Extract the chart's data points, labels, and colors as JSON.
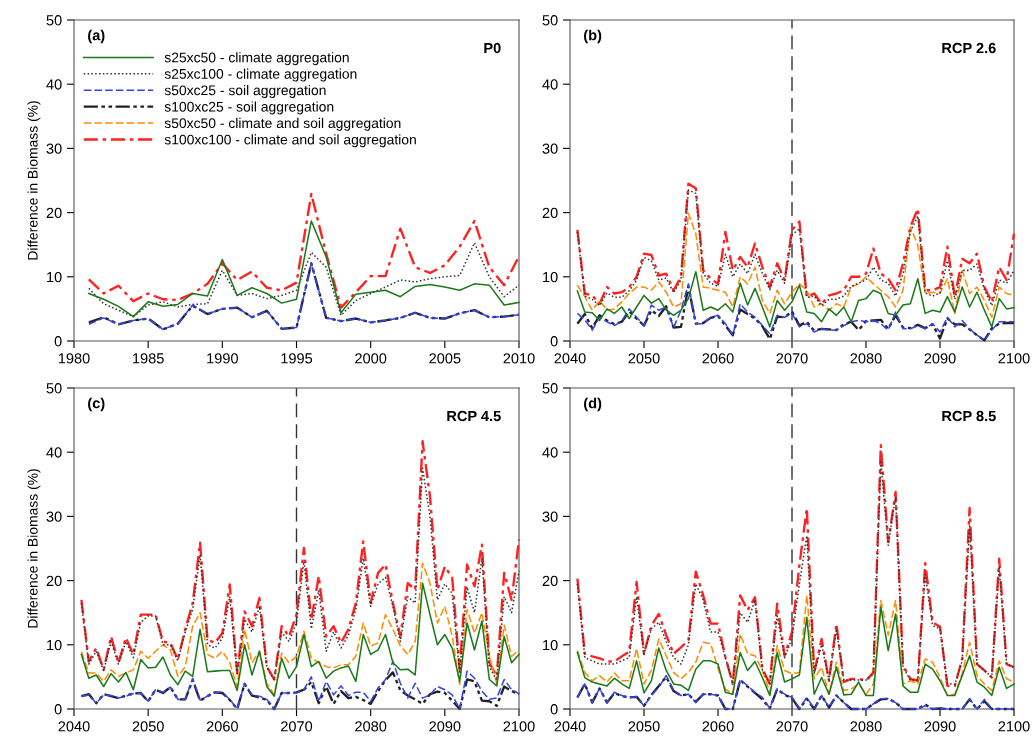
{
  "chart_data": [
    {
      "type": "line",
      "ylabel": "Difference in Biomass (%)",
      "annotations": [
        "(a)",
        "P0"
      ],
      "legend": "top left",
      "xlim": [
        1980,
        2010
      ],
      "ylim": [
        0,
        50
      ],
      "xticks": [
        1980,
        1985,
        1990,
        1995,
        2000,
        2005,
        2010
      ],
      "yticks": [
        0,
        10,
        20,
        30,
        40,
        50
      ],
      "x": [
        1981,
        1982,
        1983,
        1984,
        1985,
        1986,
        1987,
        1988,
        1989,
        1990,
        1991,
        1992,
        1993,
        1994,
        1995,
        1996,
        1997,
        1998,
        1999,
        2000,
        2001,
        2002,
        2003,
        2004,
        2005,
        2006,
        2007,
        2008,
        2009,
        2010
      ],
      "series": [
        {
          "name": "s25xc50 - climate aggregation",
          "color": "#1a7a1a",
          "line_style": "solid",
          "values": [
            7.4,
            6.5,
            5.4,
            3.8,
            6.1,
            5.4,
            5.7,
            7.4,
            7.0,
            12.7,
            7.1,
            8.3,
            7.4,
            5.9,
            6.5,
            18.7,
            13.1,
            4.4,
            7.3,
            7.6,
            7.9,
            6.9,
            8.5,
            8.8,
            8.4,
            7.9,
            8.9,
            8.7,
            5.6,
            6.0
          ]
        },
        {
          "name": "s25xc100 - climate aggregation",
          "color": "#333333",
          "line_style": "dotted",
          "values": [
            8.2,
            5.8,
            4.8,
            3.8,
            5.6,
            6.1,
            5.3,
            5.7,
            5.8,
            11.0,
            7.1,
            7.4,
            6.6,
            7.1,
            7.9,
            13.8,
            11.5,
            4.0,
            6.3,
            7.4,
            8.4,
            9.5,
            9.2,
            9.7,
            10.0,
            10.2,
            15.3,
            10.0,
            6.9,
            8.7
          ]
        },
        {
          "name": "s50xc25 - soil aggregation",
          "color": "#3344ee",
          "line_style": "dashed",
          "values": [
            2.6,
            3.6,
            2.6,
            3.2,
            3.5,
            1.8,
            2.7,
            5.6,
            4.2,
            5.0,
            5.2,
            3.7,
            4.7,
            1.9,
            2.1,
            12.1,
            3.6,
            3.1,
            3.5,
            2.9,
            3.2,
            3.6,
            4.4,
            3.6,
            3.5,
            4.3,
            4.8,
            3.7,
            3.8,
            4.1
          ]
        },
        {
          "name": "s100xc25 - soil aggregation",
          "color": "#222222",
          "line_style": "dashdotdot",
          "values": [
            2.9,
            3.7,
            2.6,
            3.2,
            3.5,
            1.8,
            2.7,
            5.5,
            4.2,
            5.0,
            5.2,
            3.7,
            4.7,
            1.9,
            2.1,
            12.1,
            3.6,
            3.1,
            3.5,
            2.9,
            3.2,
            3.6,
            4.4,
            3.6,
            3.5,
            4.3,
            4.8,
            3.7,
            3.8,
            4.1
          ]
        },
        {
          "name": "s50xc50 - climate and soil aggregation",
          "color": "#ff8c00",
          "line_style": "dashed",
          "values": [
            null,
            null,
            null,
            null,
            null,
            null,
            null,
            null,
            null,
            null,
            null,
            null,
            null,
            null,
            null,
            null,
            null,
            null,
            null,
            null,
            null,
            null,
            null,
            null,
            null,
            null,
            null,
            null,
            null,
            null
          ]
        },
        {
          "name": "s100xc100 - climate and soil aggregation",
          "color": "#ff2020",
          "line_style": "dashdot",
          "values": [
            9.6,
            7.4,
            8.6,
            6.2,
            7.4,
            6.5,
            6.4,
            7.4,
            8.9,
            12.1,
            9.5,
            10.8,
            8.3,
            7.9,
            9.1,
            22.9,
            13.6,
            5.2,
            7.6,
            10.1,
            10.1,
            17.5,
            11.5,
            10.6,
            11.8,
            14.7,
            18.7,
            11.5,
            8.7,
            13.2
          ]
        }
      ]
    },
    {
      "type": "line",
      "annotations": [
        "(b)",
        "RCP 2.6"
      ],
      "xlim": [
        2040,
        2100
      ],
      "ylim": [
        0,
        50
      ],
      "xticks": [
        2040,
        2050,
        2060,
        2070,
        2080,
        2090,
        2100
      ],
      "yticks": [
        0,
        10,
        20,
        30,
        40,
        50
      ],
      "ref_lines": [
        {
          "axis": "x",
          "value": 2070,
          "color": "#333333",
          "line_style": "dashed"
        }
      ],
      "x": [
        2041,
        2042,
        2043,
        2044,
        2045,
        2046,
        2047,
        2048,
        2049,
        2050,
        2051,
        2052,
        2053,
        2054,
        2055,
        2056,
        2057,
        2058,
        2059,
        2060,
        2061,
        2062,
        2063,
        2064,
        2065,
        2066,
        2067,
        2068,
        2069,
        2070,
        2071,
        2072,
        2073,
        2074,
        2075,
        2076,
        2077,
        2078,
        2079,
        2080,
        2081,
        2082,
        2083,
        2084,
        2085,
        2086,
        2087,
        2088,
        2089,
        2090,
        2091,
        2092,
        2093,
        2094,
        2095,
        2096,
        2097,
        2098,
        2099,
        2100
      ],
      "series": [
        {
          "color": "#1a7a1a",
          "line_style": "solid",
          "values": [
            7.8,
            4.5,
            4.4,
            3.2,
            5.0,
            4.3,
            5.3,
            3.5,
            5.3,
            7.1,
            5.9,
            6.6,
            4.8,
            4.0,
            4.8,
            6.6,
            10.8,
            4.8,
            5.3,
            4.8,
            5.8,
            4.5,
            9.0,
            5.6,
            8.2,
            5.3,
            2.2,
            6.3,
            4.8,
            6.1,
            8.7,
            4.5,
            4.3,
            3.0,
            5.0,
            4.0,
            5.3,
            3.0,
            6.3,
            6.6,
            7.9,
            7.4,
            4.3,
            4.0,
            5.6,
            5.8,
            9.7,
            4.3,
            4.8,
            4.5,
            6.9,
            4.5,
            8.4,
            5.3,
            7.6,
            4.8,
            2.2,
            6.6,
            5.0,
            5.2
          ]
        },
        {
          "color": "#333333",
          "line_style": "dotted",
          "values": [
            17.0,
            7.0,
            6.5,
            5.5,
            7.5,
            6.8,
            6.8,
            7.8,
            9.5,
            13.0,
            12.5,
            9.5,
            9.8,
            7.5,
            9.5,
            23.5,
            23.0,
            10.5,
            9.0,
            8.5,
            13.5,
            10.0,
            12.0,
            10.5,
            13.5,
            10.5,
            8.0,
            11.0,
            9.0,
            16.5,
            17.5,
            6.8,
            7.0,
            5.5,
            6.5,
            6.5,
            7.0,
            8.5,
            9.0,
            9.5,
            11.5,
            9.5,
            9.0,
            7.0,
            10.5,
            17.0,
            19.5,
            7.5,
            7.0,
            7.5,
            12.5,
            6.5,
            11.0,
            11.0,
            12.0,
            8.0,
            5.5,
            9.5,
            9.0,
            11.0
          ]
        },
        {
          "color": "#3344ee",
          "line_style": "dashed",
          "values": [
            4.3,
            3.3,
            1.7,
            3.7,
            3.0,
            2.4,
            3.1,
            5.0,
            3.7,
            2.4,
            5.6,
            4.8,
            5.3,
            2.1,
            4.8,
            8.9,
            2.7,
            2.7,
            3.7,
            4.0,
            2.7,
            0.9,
            5.8,
            4.5,
            3.7,
            2.4,
            1.1,
            4.0,
            3.7,
            4.3,
            2.2,
            2.7,
            1.4,
            1.9,
            1.7,
            1.7,
            2.4,
            3.0,
            3.2,
            3.0,
            3.2,
            2.7,
            1.7,
            4.5,
            1.9,
            1.9,
            2.4,
            1.9,
            2.7,
            1.4,
            3.7,
            2.2,
            3.2,
            1.9,
            0.9,
            0.1,
            1.7,
            3.0,
            3.0,
            3.0
          ]
        },
        {
          "color": "#222222",
          "line_style": "dashdotdot",
          "values": [
            2.7,
            4.2,
            2.0,
            4.0,
            3.2,
            2.6,
            3.0,
            4.6,
            3.5,
            2.4,
            4.8,
            3.9,
            5.4,
            2.1,
            2.2,
            8.5,
            2.7,
            2.8,
            3.6,
            3.9,
            2.4,
            0.9,
            4.9,
            4.2,
            3.5,
            2.3,
            0.3,
            3.8,
            3.7,
            4.6,
            2.4,
            3.0,
            1.6,
            1.9,
            1.8,
            1.7,
            2.6,
            3.0,
            1.7,
            3.1,
            3.2,
            3.3,
            1.9,
            4.0,
            2.1,
            2.0,
            2.5,
            2.0,
            2.6,
            0.4,
            3.5,
            2.6,
            2.6,
            1.8,
            0.9,
            0.1,
            2.0,
            2.7,
            2.8,
            2.8
          ]
        },
        {
          "color": "#ff8c00",
          "line_style": "dashed",
          "values": [
            8.7,
            6.9,
            4.8,
            6.3,
            4.8,
            5.0,
            6.1,
            7.4,
            8.4,
            8.4,
            7.9,
            9.2,
            7.6,
            5.3,
            5.8,
            19.9,
            16.7,
            8.4,
            8.2,
            7.9,
            7.6,
            5.3,
            10.0,
            8.9,
            11.5,
            6.3,
            4.3,
            7.9,
            5.8,
            7.6,
            8.9,
            7.9,
            5.3,
            5.8,
            4.8,
            5.8,
            5.3,
            8.4,
            8.9,
            10.0,
            8.9,
            7.9,
            6.9,
            5.3,
            7.9,
            17.8,
            14.9,
            7.4,
            7.6,
            7.4,
            9.7,
            4.3,
            11.0,
            7.4,
            8.4,
            6.3,
            3.7,
            8.4,
            7.4,
            7.1
          ]
        },
        {
          "color": "#ff2020",
          "line_style": "dashdot",
          "values": [
            17.3,
            7.4,
            7.1,
            5.8,
            8.4,
            7.4,
            7.6,
            8.4,
            10.0,
            13.6,
            13.4,
            10.2,
            10.5,
            7.9,
            10.0,
            24.5,
            23.8,
            11.0,
            9.7,
            8.9,
            17.0,
            11.0,
            13.1,
            11.5,
            15.2,
            11.5,
            8.4,
            12.1,
            9.5,
            17.3,
            18.6,
            6.9,
            7.4,
            5.8,
            7.1,
            7.4,
            7.9,
            10.0,
            10.0,
            10.5,
            14.4,
            10.5,
            9.7,
            7.9,
            12.1,
            17.8,
            20.6,
            7.9,
            7.9,
            8.4,
            14.7,
            6.9,
            12.8,
            12.1,
            13.6,
            8.4,
            6.1,
            11.5,
            9.5,
            16.7
          ]
        }
      ]
    },
    {
      "type": "line",
      "ylabel": "Difference in Biomass (%)",
      "annotations": [
        "(c)",
        "RCP 4.5"
      ],
      "xlim": [
        2040,
        2100
      ],
      "ylim": [
        0,
        50
      ],
      "xticks": [
        2040,
        2050,
        2060,
        2070,
        2080,
        2090,
        2100
      ],
      "yticks": [
        0,
        10,
        20,
        30,
        40,
        50
      ],
      "ref_lines": [
        {
          "axis": "x",
          "value": 2070,
          "color": "#333333",
          "line_style": "dashed"
        }
      ],
      "x": [
        2041,
        2042,
        2043,
        2044,
        2045,
        2046,
        2047,
        2048,
        2049,
        2050,
        2051,
        2052,
        2053,
        2054,
        2055,
        2056,
        2057,
        2058,
        2059,
        2060,
        2061,
        2062,
        2063,
        2064,
        2065,
        2066,
        2067,
        2068,
        2069,
        2070,
        2071,
        2072,
        2073,
        2074,
        2075,
        2076,
        2077,
        2078,
        2079,
        2080,
        2081,
        2082,
        2083,
        2084,
        2085,
        2086,
        2087,
        2088,
        2089,
        2090,
        2091,
        2092,
        2093,
        2094,
        2095,
        2096,
        2097,
        2098,
        2099,
        2100
      ],
      "series": [
        {
          "color": "#1a7a1a",
          "line_style": "solid",
          "values": [
            8.5,
            4.8,
            5.3,
            3.5,
            5.5,
            4.2,
            5.7,
            3.0,
            7.7,
            6.4,
            6.5,
            8.1,
            5.3,
            3.8,
            5.9,
            5.1,
            12.4,
            5.8,
            5.9,
            6.0,
            6.0,
            2.9,
            10.0,
            5.3,
            9.0,
            3.5,
            2.0,
            7.9,
            4.8,
            6.6,
            11.6,
            6.6,
            7.4,
            4.8,
            5.9,
            6.4,
            6.7,
            4.3,
            11.6,
            8.5,
            9.2,
            11.6,
            7.2,
            6.1,
            6.2,
            5.3,
            19.6,
            14.7,
            10.0,
            11.6,
            9.5,
            4.3,
            13.4,
            9.2,
            13.7,
            4.6,
            3.6,
            11.3,
            7.2,
            8.5
          ]
        },
        {
          "color": "#333333",
          "line_style": "dotted",
          "values": [
            16.5,
            7.0,
            9.0,
            6.0,
            10.5,
            7.0,
            10.5,
            8.0,
            13.5,
            14.5,
            14.5,
            10.0,
            10.0,
            7.5,
            12.0,
            15.5,
            24.0,
            10.0,
            9.5,
            11.0,
            17.5,
            5.5,
            14.0,
            12.0,
            16.0,
            6.5,
            4.5,
            12.0,
            10.5,
            13.5,
            23.0,
            12.5,
            18.5,
            9.0,
            12.0,
            9.5,
            11.5,
            15.5,
            23.5,
            16.0,
            19.5,
            20.5,
            16.0,
            10.5,
            17.5,
            16.5,
            37.5,
            30.0,
            17.0,
            19.5,
            18.0,
            5.5,
            19.0,
            15.0,
            23.5,
            6.5,
            4.5,
            17.5,
            15.0,
            21.5
          ]
        },
        {
          "color": "#3344ee",
          "line_style": "dashed",
          "values": [
            2.0,
            2.2,
            0.9,
            2.2,
            2.1,
            1.7,
            2.0,
            2.4,
            2.5,
            1.2,
            3.0,
            2.6,
            3.4,
            1.5,
            1.5,
            4.8,
            1.4,
            2.0,
            2.6,
            2.6,
            1.5,
            0.0,
            4.0,
            2.2,
            2.0,
            1.5,
            0.0,
            2.5,
            2.5,
            2.5,
            3.0,
            5.0,
            1.2,
            4.3,
            2.2,
            3.6,
            2.1,
            2.6,
            2.6,
            1.2,
            3.3,
            4.6,
            7.4,
            4.0,
            1.7,
            4.0,
            1.7,
            2.2,
            3.5,
            3.0,
            2.2,
            0.0,
            5.9,
            4.8,
            2.8,
            1.5,
            1.7,
            4.6,
            3.0,
            2.4
          ]
        },
        {
          "color": "#222222",
          "line_style": "dashdotdot",
          "values": [
            2.0,
            2.3,
            0.9,
            2.3,
            2.0,
            1.7,
            2.1,
            2.4,
            2.5,
            1.2,
            3.0,
            2.5,
            3.4,
            1.5,
            1.5,
            4.5,
            1.3,
            2.0,
            2.6,
            2.5,
            1.4,
            0.0,
            3.9,
            2.1,
            1.8,
            1.4,
            0.0,
            2.5,
            2.5,
            2.6,
            3.0,
            4.2,
            0.9,
            3.5,
            0.8,
            2.8,
            1.7,
            1.9,
            1.4,
            0.8,
            2.8,
            4.5,
            5.7,
            2.9,
            2.1,
            1.5,
            0.8,
            2.3,
            2.7,
            2.5,
            1.3,
            0.0,
            4.6,
            4.3,
            1.3,
            1.2,
            0.5,
            3.5,
            2.8,
            2.3
          ]
        },
        {
          "color": "#ff8c00",
          "line_style": "dashed",
          "values": [
            8.9,
            5.6,
            5.6,
            4.3,
            6.1,
            5.1,
            5.6,
            6.1,
            9.0,
            7.9,
            9.0,
            10.0,
            9.2,
            5.1,
            6.6,
            12.9,
            15.0,
            8.5,
            7.9,
            9.0,
            7.2,
            3.5,
            12.4,
            7.2,
            9.0,
            4.0,
            2.2,
            8.7,
            7.2,
            8.2,
            12.1,
            7.9,
            7.2,
            6.6,
            6.4,
            6.9,
            6.9,
            8.2,
            13.4,
            9.8,
            10.3,
            14.7,
            12.4,
            9.8,
            8.5,
            10.5,
            22.7,
            19.6,
            13.4,
            16.0,
            11.3,
            3.8,
            15.5,
            11.8,
            15.0,
            8.2,
            4.0,
            13.1,
            8.2,
            9.2
          ]
        },
        {
          "color": "#ff2020",
          "line_style": "dashdot",
          "values": [
            17.0,
            7.4,
            9.5,
            6.1,
            11.3,
            7.2,
            11.1,
            8.5,
            14.7,
            14.7,
            14.7,
            10.5,
            10.3,
            7.7,
            12.4,
            16.5,
            25.9,
            10.8,
            10.3,
            11.8,
            19.4,
            5.6,
            15.2,
            12.9,
            17.3,
            6.6,
            4.6,
            12.9,
            11.3,
            14.7,
            25.1,
            13.9,
            20.7,
            11.3,
            12.9,
            10.3,
            12.4,
            16.5,
            26.1,
            16.5,
            21.2,
            22.5,
            16.5,
            11.3,
            19.6,
            18.6,
            41.7,
            33.1,
            18.6,
            22.2,
            20.4,
            6.1,
            22.5,
            19.1,
            25.6,
            7.2,
            5.1,
            21.2,
            17.0,
            26.4
          ]
        }
      ]
    },
    {
      "type": "line",
      "annotations": [
        "(d)",
        "RCP 8.5"
      ],
      "xlim": [
        2040,
        2100
      ],
      "ylim": [
        0,
        50
      ],
      "xticks": [
        2040,
        2050,
        2060,
        2070,
        2080,
        2090,
        2100
      ],
      "yticks": [
        0,
        10,
        20,
        30,
        40,
        50
      ],
      "ref_lines": [
        {
          "axis": "x",
          "value": 2070,
          "color": "#333333",
          "line_style": "dashed"
        }
      ],
      "x": [
        2041,
        2042,
        2043,
        2044,
        2045,
        2046,
        2047,
        2048,
        2049,
        2050,
        2051,
        2052,
        2053,
        2054,
        2055,
        2056,
        2057,
        2058,
        2059,
        2060,
        2061,
        2062,
        2063,
        2064,
        2065,
        2066,
        2067,
        2068,
        2069,
        2070,
        2071,
        2072,
        2073,
        2074,
        2075,
        2076,
        2077,
        2078,
        2079,
        2080,
        2081,
        2082,
        2083,
        2084,
        2085,
        2086,
        2087,
        2088,
        2089,
        2090,
        2091,
        2092,
        2093,
        2094,
        2095,
        2096,
        2097,
        2098,
        2099,
        2100
      ],
      "series": [
        {
          "color": "#1a7a1a",
          "line_style": "solid",
          "values": [
            8.8,
            4.9,
            4.2,
            3.9,
            3.6,
            4.8,
            3.9,
            3.2,
            7.5,
            2.5,
            4.4,
            9.5,
            6.0,
            3.9,
            3.7,
            2.9,
            6.2,
            7.5,
            7.5,
            7.0,
            2.6,
            2.3,
            8.8,
            6.0,
            7.4,
            4.9,
            2.1,
            8.8,
            4.2,
            4.7,
            5.3,
            14.3,
            2.3,
            4.9,
            2.3,
            6.5,
            2.2,
            2.3,
            4.2,
            2.1,
            2.1,
            15.9,
            9.1,
            14.8,
            3.6,
            2.6,
            2.6,
            7.0,
            6.2,
            4.4,
            2.1,
            2.1,
            5.2,
            8.3,
            4.2,
            3.4,
            2.1,
            6.5,
            3.2,
            3.9
          ]
        },
        {
          "color": "#333333",
          "line_style": "dotted",
          "values": [
            19.5,
            8.0,
            7.5,
            7.0,
            7.0,
            7.0,
            7.5,
            8.0,
            17.5,
            8.5,
            12.5,
            13.5,
            10.5,
            8.0,
            7.0,
            10.0,
            19.5,
            17.0,
            12.0,
            12.0,
            8.0,
            4.0,
            15.0,
            13.5,
            17.0,
            6.0,
            4.0,
            14.5,
            8.0,
            11.0,
            19.5,
            27.0,
            5.5,
            10.0,
            4.5,
            12.5,
            4.5,
            4.5,
            4.5,
            4.5,
            5.5,
            38.5,
            25.5,
            33.0,
            6.5,
            4.5,
            4.5,
            21.0,
            13.0,
            12.5,
            4.0,
            3.8,
            7.5,
            28.5,
            7.0,
            6.0,
            5.0,
            22.0,
            7.0,
            6.5
          ]
        },
        {
          "color": "#3344ee",
          "line_style": "dashed",
          "values": [
            1.8,
            3.9,
            1.0,
            3.2,
            1.0,
            2.6,
            2.1,
            1.8,
            1.9,
            0.5,
            2.1,
            3.4,
            5.2,
            2.9,
            2.1,
            2.3,
            1.0,
            2.3,
            2.3,
            2.1,
            0.0,
            0.0,
            4.6,
            3.6,
            2.6,
            1.8,
            0.1,
            3.2,
            2.3,
            1.8,
            0.1,
            1.8,
            0.0,
            2.1,
            0.3,
            2.1,
            1.0,
            0.0,
            0.0,
            0.0,
            0.8,
            1.6,
            1.6,
            1.0,
            0.0,
            0.0,
            0.0,
            0.5,
            0.0,
            0.1,
            0.0,
            0.0,
            0.0,
            1.6,
            0.0,
            1.5,
            0.0,
            0.0,
            0.0,
            0.0
          ]
        },
        {
          "color": "#222222",
          "line_style": "dashdotdot",
          "values": [
            1.8,
            3.9,
            1.0,
            3.2,
            1.0,
            2.5,
            2.0,
            1.8,
            1.9,
            0.5,
            2.2,
            3.6,
            5.0,
            2.8,
            2.1,
            2.3,
            1.1,
            2.3,
            2.3,
            2.1,
            0.0,
            0.0,
            4.5,
            3.5,
            2.5,
            1.5,
            0.1,
            3.1,
            2.2,
            1.7,
            0.0,
            1.6,
            0.0,
            2.1,
            0.2,
            2.1,
            1.0,
            0.0,
            0.0,
            0.0,
            0.8,
            1.5,
            1.6,
            1.0,
            0.0,
            0.0,
            0.0,
            0.7,
            0.0,
            0.1,
            0.0,
            0.0,
            0.0,
            1.5,
            0.0,
            1.2,
            0.0,
            0.0,
            0.0,
            0.0
          ]
        },
        {
          "color": "#ff8c00",
          "line_style": "dashed",
          "values": [
            9.1,
            5.7,
            4.4,
            5.2,
            4.2,
            5.6,
            4.4,
            4.4,
            9.4,
            3.9,
            6.0,
            10.9,
            8.3,
            5.7,
            4.7,
            5.7,
            7.3,
            10.4,
            10.2,
            6.3,
            3.1,
            2.3,
            11.7,
            8.6,
            8.3,
            6.0,
            2.6,
            9.9,
            6.0,
            5.5,
            5.7,
            17.7,
            4.7,
            6.5,
            2.3,
            7.3,
            2.9,
            3.1,
            3.9,
            2.3,
            3.9,
            16.9,
            11.5,
            16.9,
            3.9,
            4.4,
            3.9,
            7.8,
            7.3,
            4.9,
            2.1,
            2.3,
            5.5,
            10.4,
            5.2,
            3.9,
            2.9,
            7.5,
            4.7,
            4.2
          ]
        },
        {
          "color": "#ff2020",
          "line_style": "dashdot",
          "values": [
            20.3,
            8.6,
            8.2,
            7.9,
            7.4,
            7.4,
            8.2,
            8.9,
            19.8,
            8.6,
            13.0,
            14.8,
            11.5,
            8.6,
            9.6,
            10.7,
            21.4,
            17.7,
            13.3,
            13.3,
            8.1,
            3.9,
            17.7,
            15.4,
            17.4,
            6.3,
            3.9,
            16.4,
            8.3,
            12.0,
            22.4,
            31.3,
            5.7,
            10.9,
            4.4,
            13.3,
            4.2,
            4.7,
            4.7,
            4.4,
            5.7,
            41.1,
            26.0,
            33.8,
            6.8,
            4.7,
            4.4,
            22.7,
            13.5,
            12.8,
            3.6,
            3.6,
            7.8,
            31.3,
            7.0,
            6.0,
            4.9,
            23.4,
            7.0,
            6.5
          ]
        }
      ]
    }
  ]
}
